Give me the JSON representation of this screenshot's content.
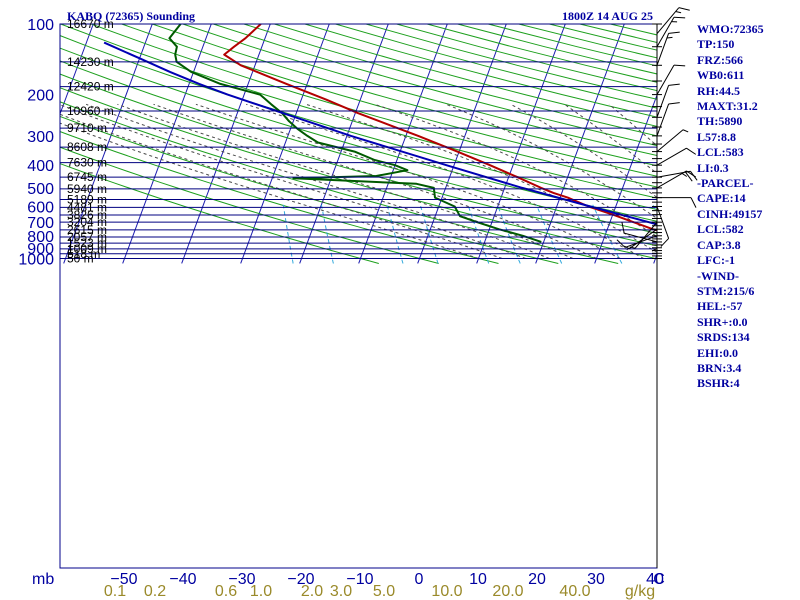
{
  "header": {
    "station": "KABQ (72365) Sounding",
    "time": "1800Z 14 AUG 25"
  },
  "indices": [
    "WMO:72365",
    "TP:150",
    "FRZ:566",
    "WB0:611",
    "RH:44.5",
    "MAXT:31.2",
    "TH:5890",
    "L57:8.8",
    "LCL:583",
    "LI:0.3",
    "-PARCEL-",
    "CAPE:14",
    "CINH:49157",
    "LCL:582",
    "CAP:3.8",
    "LFC:-1",
    "-WIND-",
    "STM:215/6",
    "HEL:-57",
    "SHR+:0.0",
    "SRDS:134",
    "EHI:0.0",
    "BRN:3.4",
    "BSHR:4"
  ],
  "chart_data": {
    "type": "line",
    "diagram": "skew-T log-P sounding",
    "x_unit_label": "C",
    "y_unit_label": "mb",
    "temperature_ticks": [
      "-50",
      "-40",
      "-30",
      "-20",
      "-10",
      "0",
      "10",
      "20",
      "30",
      "40"
    ],
    "temperature_tick_values": [
      -50,
      -40,
      -30,
      -20,
      -10,
      0,
      10,
      20,
      30,
      40
    ],
    "pressure_ticks": [
      "100",
      "200",
      "300",
      "400",
      "500",
      "600",
      "700",
      "800",
      "900",
      "1000"
    ],
    "pressure_tick_values": [
      100,
      200,
      300,
      400,
      500,
      600,
      700,
      800,
      900,
      1000
    ],
    "mixing_ratio_unit": "g/kg",
    "mixing_ratio_ticks": [
      "0.1",
      "0.2",
      "0.6",
      "1.0",
      "2.0",
      "3.0",
      "5.0",
      "10.0",
      "20.0",
      "40.0"
    ],
    "mixing_ratio_values": [
      0.1,
      0.2,
      0.6,
      1.0,
      2.0,
      3.0,
      5.0,
      10.0,
      20.0,
      40.0
    ],
    "height_levels": [
      {
        "p": 100,
        "label": "16670 m"
      },
      {
        "p": 145,
        "label": "14230 m"
      },
      {
        "p": 185,
        "label": "12420 m"
      },
      {
        "p": 235,
        "label": "10960 m"
      },
      {
        "p": 278,
        "label": "9710 m"
      },
      {
        "p": 335,
        "label": "8608 m"
      },
      {
        "p": 390,
        "label": "7630 m"
      },
      {
        "p": 450,
        "label": "6745 m"
      },
      {
        "p": 505,
        "label": "5940 m"
      },
      {
        "p": 560,
        "label": "5189 m"
      },
      {
        "p": 605,
        "label": "4481 m"
      },
      {
        "p": 652,
        "label": "3826 m"
      },
      {
        "p": 700,
        "label": "3204 m"
      },
      {
        "p": 755,
        "label": "2615 m"
      },
      {
        "p": 810,
        "label": "2057 m"
      },
      {
        "p": 860,
        "label": "1523 m"
      },
      {
        "p": 910,
        "label": "1009 m"
      },
      {
        "p": 955,
        "label": "518 m"
      },
      {
        "p": 1000,
        "label": "50 m"
      }
    ],
    "series": [
      {
        "role": "temperature",
        "color": "#b40000",
        "points": [
          {
            "p": 850,
            "t": 30.0
          },
          {
            "p": 825,
            "t": 24.4
          },
          {
            "p": 800,
            "t": 22.7
          },
          {
            "p": 750,
            "t": 17.7
          },
          {
            "p": 700,
            "t": 14.0
          },
          {
            "p": 650,
            "t": 10.0
          },
          {
            "p": 600,
            "t": 5.4
          },
          {
            "p": 550,
            "t": 1.3
          },
          {
            "p": 525,
            "t": -1.4
          },
          {
            "p": 500,
            "t": -3.8
          },
          {
            "p": 450,
            "t": -8.5
          },
          {
            "p": 400,
            "t": -13.9
          },
          {
            "p": 350,
            "t": -20.3
          },
          {
            "p": 300,
            "t": -27.9
          },
          {
            "p": 270,
            "t": -33.4
          },
          {
            "p": 240,
            "t": -39.5
          },
          {
            "p": 210,
            "t": -45.8
          },
          {
            "p": 180,
            "t": -53.5
          },
          {
            "p": 150,
            "t": -62.4
          },
          {
            "p": 135,
            "t": -65.9
          },
          {
            "p": 125,
            "t": -64.7
          },
          {
            "p": 115,
            "t": -63.3
          },
          {
            "p": 100,
            "t": -61.6
          }
        ]
      },
      {
        "role": "dewpoint",
        "color": "#005a00",
        "points": [
          {
            "p": 850,
            "t": -0.4
          },
          {
            "p": 800,
            "t": -3.9
          },
          {
            "p": 750,
            "t": -8.4
          },
          {
            "p": 700,
            "t": -12.5
          },
          {
            "p": 660,
            "t": -15.8
          },
          {
            "p": 600,
            "t": -17.3
          },
          {
            "p": 550,
            "t": -21.2
          },
          {
            "p": 500,
            "t": -22.0
          },
          {
            "p": 480,
            "t": -25.2
          },
          {
            "p": 455,
            "t": -46.4
          },
          {
            "p": 445,
            "t": -32.5
          },
          {
            "p": 420,
            "t": -27.6
          },
          {
            "p": 400,
            "t": -30.0
          },
          {
            "p": 380,
            "t": -33.8
          },
          {
            "p": 350,
            "t": -37.7
          },
          {
            "p": 320,
            "t": -44.5
          },
          {
            "p": 300,
            "t": -46.7
          },
          {
            "p": 280,
            "t": -48.8
          },
          {
            "p": 260,
            "t": -50.7
          },
          {
            "p": 240,
            "t": -52.4
          },
          {
            "p": 220,
            "t": -54.8
          },
          {
            "p": 200,
            "t": -57.3
          },
          {
            "p": 180,
            "t": -64.7
          },
          {
            "p": 160,
            "t": -70.4
          },
          {
            "p": 145,
            "t": -73.5
          },
          {
            "p": 135,
            "t": -74.2
          },
          {
            "p": 125,
            "t": -74.4
          },
          {
            "p": 115,
            "t": -76.2
          },
          {
            "p": 100,
            "t": -75.2
          }
        ]
      },
      {
        "role": "parcel",
        "color": "#0000b4",
        "points": [
          {
            "p": 850,
            "t": 30.0
          },
          {
            "p": 700,
            "t": 16.6
          },
          {
            "p": 600,
            "t": 5.7
          },
          {
            "p": 500,
            "t": -7.0
          },
          {
            "p": 400,
            "t": -21.3
          },
          {
            "p": 300,
            "t": -39.3
          },
          {
            "p": 200,
            "t": -62.8
          },
          {
            "p": 180,
            "t": -68.3
          },
          {
            "p": 160,
            "t": -74.0
          },
          {
            "p": 140,
            "t": -80.0
          },
          {
            "p": 120,
            "t": -87.0
          }
        ]
      }
    ],
    "wind_barbs": [
      {
        "p": 850,
        "dir": 285,
        "spd": 10
      },
      {
        "p": 800,
        "dir": 250,
        "spd": 10
      },
      {
        "p": 750,
        "dir": 235,
        "spd": 5
      },
      {
        "p": 700,
        "dir": 220,
        "spd": 5
      },
      {
        "p": 650,
        "dir": 180,
        "spd": 5
      },
      {
        "p": 600,
        "dir": 160,
        "spd": 10
      },
      {
        "p": 550,
        "dir": 90,
        "spd": 10
      },
      {
        "p": 500,
        "dir": 60,
        "spd": 15
      },
      {
        "p": 450,
        "dir": 80,
        "spd": 20
      },
      {
        "p": 400,
        "dir": 60,
        "spd": 10
      },
      {
        "p": 350,
        "dir": 50,
        "spd": 5
      },
      {
        "p": 300,
        "dir": 20,
        "spd": 10
      },
      {
        "p": 250,
        "dir": 20,
        "spd": 10
      },
      {
        "p": 200,
        "dir": 30,
        "spd": 10
      },
      {
        "p": 150,
        "dir": 20,
        "spd": 15
      },
      {
        "p": 125,
        "dir": 30,
        "spd": 15
      },
      {
        "p": 110,
        "dir": 40,
        "spd": 15
      }
    ]
  }
}
